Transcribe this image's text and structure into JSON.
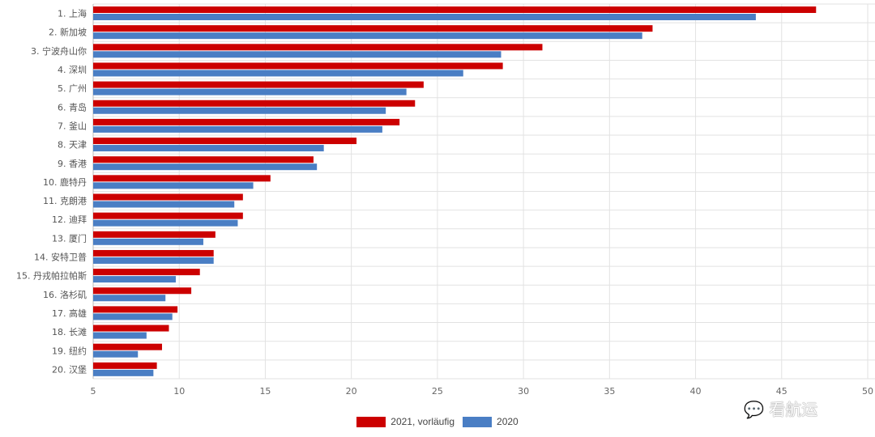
{
  "chart_data": {
    "type": "bar",
    "orientation": "horizontal",
    "categories": [
      "1. 上海",
      "2. 新加坡",
      "3. 宁波舟山你",
      "4. 深圳",
      "5. 广州",
      "6. 青岛",
      "7. 釜山",
      "8. 天津",
      "9. 香港",
      "10. 鹿特丹",
      "11. 克朗港",
      "12. 迪拜",
      "13. 厦门",
      "14. 安特卫普",
      "15. 丹戎帕拉帕斯",
      "16. 洛杉矶",
      "17. 高雄",
      "18. 长滩",
      "19. 纽约",
      "20. 汉堡"
    ],
    "series": [
      {
        "name": "2021, vorläufig",
        "color": "#cc0000",
        "values": [
          47.0,
          37.5,
          31.1,
          28.8,
          24.2,
          23.7,
          22.8,
          20.3,
          17.8,
          15.3,
          13.7,
          13.7,
          12.1,
          12.0,
          11.2,
          10.7,
          9.9,
          9.4,
          9.0,
          8.7
        ]
      },
      {
        "name": "2020",
        "color": "#4a7ec4",
        "values": [
          43.5,
          36.9,
          28.7,
          26.5,
          23.2,
          22.0,
          21.8,
          18.4,
          18.0,
          14.3,
          13.2,
          13.4,
          11.4,
          12.0,
          9.8,
          9.2,
          9.6,
          8.1,
          7.6,
          8.5
        ]
      }
    ],
    "xticks": [
      "5",
      "10",
      "15",
      "20",
      "25",
      "30",
      "35",
      "40",
      "45",
      "50"
    ],
    "xlim": [
      5,
      50
    ],
    "grid": true,
    "legend": "bottom-center",
    "title": "",
    "xlabel": "",
    "ylabel": ""
  },
  "watermark": "看航运"
}
